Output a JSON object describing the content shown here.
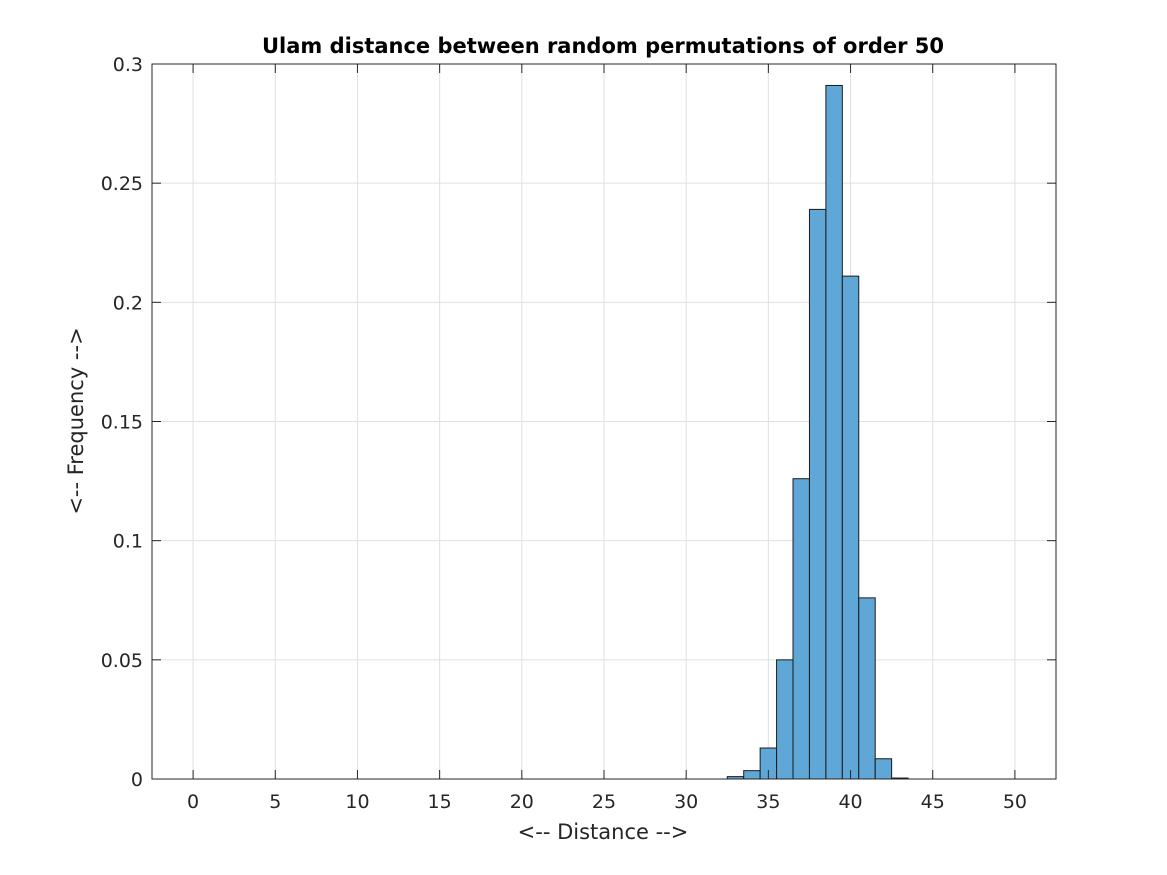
{
  "chart_data": {
    "type": "bar",
    "title": "Ulam distance between random permutations of order 50",
    "xlabel": "<-- Distance -->",
    "ylabel": "<-- Frequency -->",
    "xlim": [
      -2.5,
      52.5
    ],
    "ylim": [
      0,
      0.3
    ],
    "xticks": [
      0,
      5,
      10,
      15,
      20,
      25,
      30,
      35,
      40,
      45,
      50
    ],
    "xtick_labels": [
      "0",
      "5",
      "10",
      "15",
      "20",
      "25",
      "30",
      "35",
      "40",
      "45",
      "50"
    ],
    "yticks": [
      0,
      0.05,
      0.1,
      0.15,
      0.2,
      0.25,
      0.3
    ],
    "ytick_labels": [
      "0",
      "0.05",
      "0.1",
      "0.15",
      "0.2",
      "0.25",
      "0.3"
    ],
    "grid": true,
    "bin_width": 1,
    "bins": [
      {
        "center": 33,
        "value": 0.001
      },
      {
        "center": 34,
        "value": 0.0035
      },
      {
        "center": 35,
        "value": 0.013
      },
      {
        "center": 36,
        "value": 0.05
      },
      {
        "center": 37,
        "value": 0.126
      },
      {
        "center": 38,
        "value": 0.239
      },
      {
        "center": 39,
        "value": 0.291
      },
      {
        "center": 40,
        "value": 0.211
      },
      {
        "center": 41,
        "value": 0.076
      },
      {
        "center": 42,
        "value": 0.0085
      },
      {
        "center": 43,
        "value": 0.0004
      }
    ],
    "colors": {
      "bar_fill": "#5ea7d6",
      "bar_edge": "#1a1a1a",
      "grid": "#e0e0e0",
      "axes": "#262626"
    }
  }
}
